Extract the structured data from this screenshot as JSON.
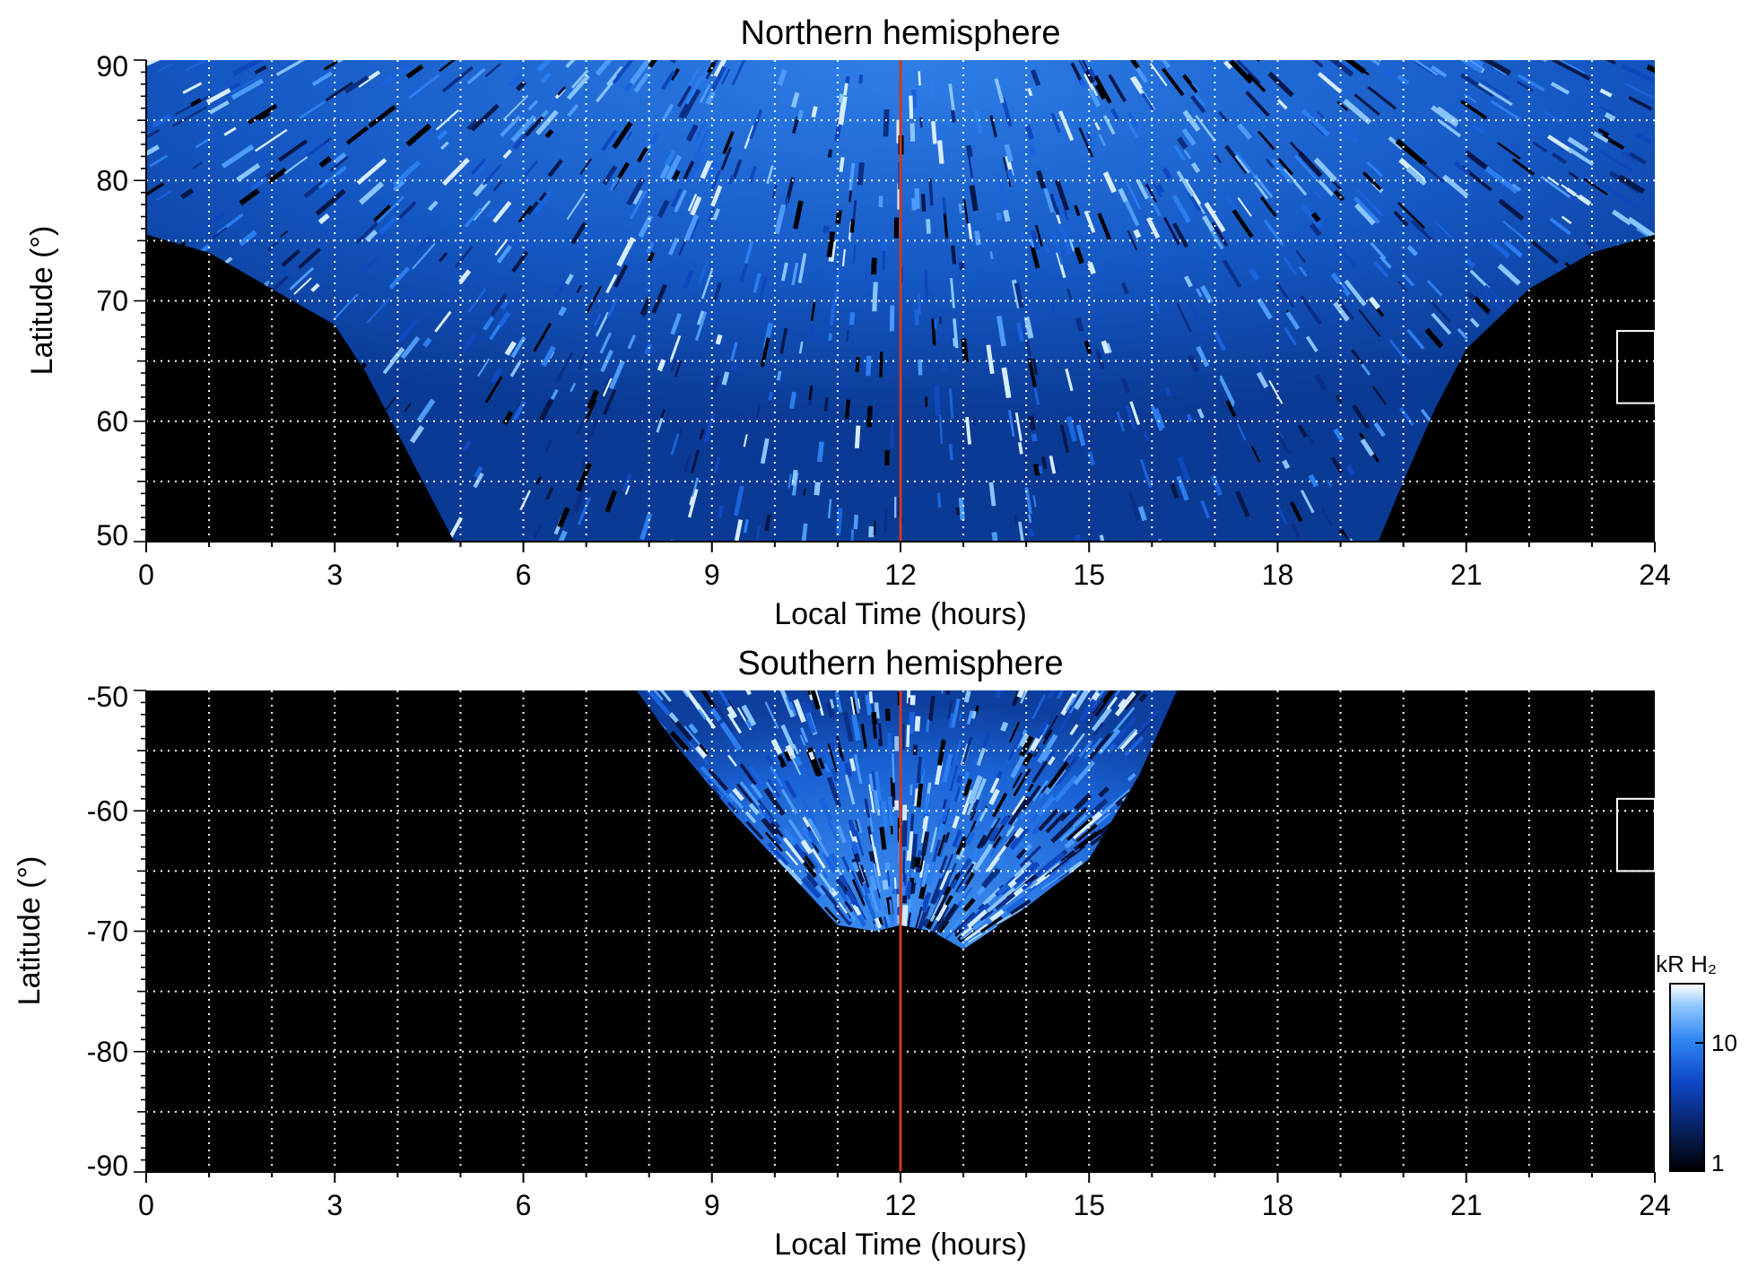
{
  "chart_data": [
    {
      "type": "heatmap",
      "title": "Northern hemisphere",
      "xlabel": "Local Time (hours)",
      "ylabel": "Latitude (°)",
      "xlim": [
        0,
        24
      ],
      "ylim": [
        50,
        90
      ],
      "x_ticks": [
        "0",
        "3",
        "6",
        "9",
        "12",
        "15",
        "18",
        "21",
        "24"
      ],
      "y_ticks": [
        "50",
        "60",
        "70",
        "80",
        "90"
      ],
      "grid": true,
      "reference_line": {
        "x": 12,
        "color": "#d2381e"
      },
      "coverage": {
        "description_values": [
          [
            0,
            75.5
          ],
          [
            1,
            74
          ],
          [
            2,
            71
          ],
          [
            3,
            68
          ],
          [
            3.5,
            64
          ],
          [
            4,
            59
          ],
          [
            4.5,
            54
          ],
          [
            4.9,
            50
          ],
          [
            19.6,
            50
          ],
          [
            20,
            55
          ],
          [
            20.5,
            61
          ],
          [
            21,
            66
          ],
          [
            22,
            71
          ],
          [
            23,
            74
          ],
          [
            24,
            75.5
          ]
        ]
      },
      "marker_box": {
        "x": [
          23.4,
          24
        ],
        "y": [
          61.5,
          67.5
        ]
      },
      "background_color": "#000000",
      "emission_color": "#1e6cf0"
    },
    {
      "type": "heatmap",
      "title": "Southern hemisphere",
      "xlabel": "Local Time (hours)",
      "ylabel": "Latitude (°)",
      "xlim": [
        0,
        24
      ],
      "ylim": [
        -90,
        -50
      ],
      "x_ticks": [
        "0",
        "3",
        "6",
        "9",
        "12",
        "15",
        "18",
        "21",
        "24"
      ],
      "y_ticks": [
        "-50",
        "-60",
        "-70",
        "-80",
        "-90"
      ],
      "grid": true,
      "reference_line": {
        "x": 12,
        "color": "#d2381e"
      },
      "coverage": {
        "description_values": [
          [
            7.8,
            -50
          ],
          [
            8.5,
            -55
          ],
          [
            9.3,
            -60
          ],
          [
            10.2,
            -65
          ],
          [
            11,
            -69.5
          ],
          [
            11.6,
            -70
          ],
          [
            12,
            -69.5
          ],
          [
            12.5,
            -70
          ],
          [
            13,
            -71.5
          ],
          [
            14,
            -68
          ],
          [
            15,
            -64
          ],
          [
            15.8,
            -57
          ],
          [
            16.4,
            -50
          ]
        ]
      },
      "marker_box": {
        "x": [
          23.4,
          24
        ],
        "y": [
          -65,
          -59
        ]
      },
      "background_color": "#000000",
      "emission_color": "#1e6cf0"
    }
  ],
  "colorbar": {
    "title": "kR H₂",
    "ticks": [
      "1",
      "10"
    ],
    "scale": "log",
    "colors": [
      "#000000",
      "#07205e",
      "#0e48c8",
      "#2f86f2",
      "#8ec7ff",
      "#ffffff"
    ]
  }
}
